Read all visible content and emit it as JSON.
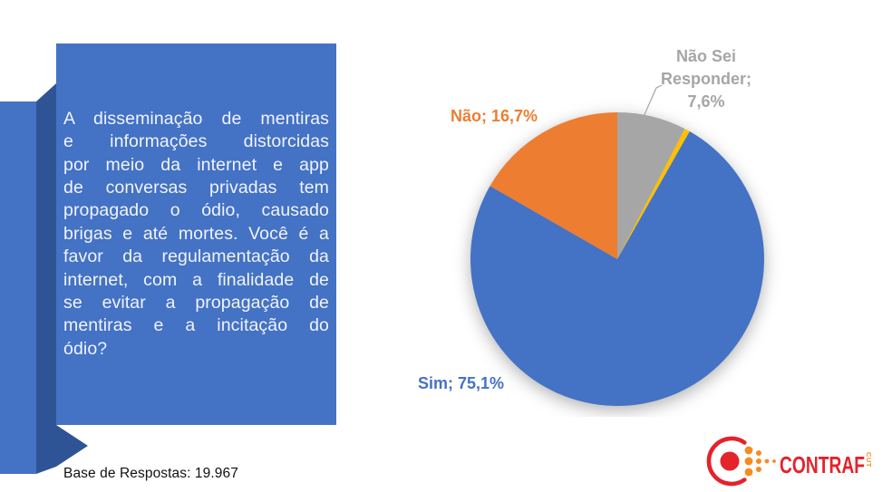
{
  "slide": {
    "question_box": {
      "lines": [
        "A disseminação de mentiras",
        "e informações distorcidas",
        "por meio da internet e app",
        "de conversas privadas tem",
        "propagado o ódio, causado",
        "brigas e até mortes. Você é a",
        "favor da regulamentação da",
        "internet, com a finalidade de",
        "se evitar a propagação de",
        "mentiras e a incitação do",
        "ódio?"
      ],
      "full_text": "A disseminação de mentiras e informações distorcidas por meio da internet e app de conversas privadas tem propagado o ódio, causado brigas e até mortes. Você é a favor da regulamentação da internet, com a finalidade de se evitar a propagação de mentiras e a incitação do ódio?"
    },
    "colors": {
      "panel": "#4472C4",
      "panel_fold": "#2F5496",
      "logo_red": "#E4232B",
      "logo_orange": "#F68B1F"
    },
    "footer": {
      "base_text": "Base de Respostas: 19.967"
    },
    "logo": {
      "name": "CONTRAF",
      "sub": "CUT"
    }
  },
  "chart_data": {
    "type": "pie",
    "title": "",
    "unit": "%",
    "start_at": "12-oclock",
    "direction": "clockwise",
    "legend_position": "none",
    "segments": [
      {
        "label": "Não Sei Responder",
        "value": 7.6,
        "color": "#A6A6A6"
      },
      {
        "label": "",
        "value": 0.6,
        "color": "#FFC000"
      },
      {
        "label": "Sim",
        "value": 75.1,
        "color": "#4472C4"
      },
      {
        "label": "Não",
        "value": 16.7,
        "color": "#ED7D31"
      }
    ],
    "data_labels": {
      "sim": "Sim; 75,1%",
      "nao": "Não; 16,7%",
      "nao_sei": "Não Sei\nResponder;\n7,6%"
    },
    "label_colors": {
      "sim": "#4472C4",
      "nao": "#ED7D31",
      "nao_sei": "#A6A6A6"
    }
  }
}
